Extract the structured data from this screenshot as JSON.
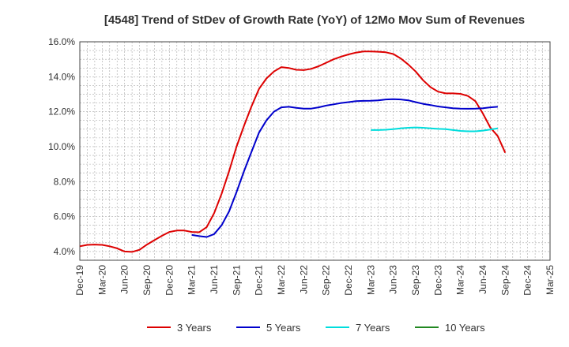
{
  "chart_data": {
    "type": "line",
    "title": "[4548]  Trend of StDev of Growth Rate (YoY) of 12Mo Mov Sum of Revenues",
    "xlabel": "",
    "ylabel": "",
    "ylim": [
      3.5,
      16.0
    ],
    "y_ticks": [
      "4.0%",
      "6.0%",
      "8.0%",
      "10.0%",
      "12.0%",
      "14.0%",
      "16.0%"
    ],
    "y_tick_values": [
      4,
      6,
      8,
      10,
      12,
      14,
      16
    ],
    "x_tick_labels": [
      "Dec-19",
      "Mar-20",
      "Jun-20",
      "Sep-20",
      "Dec-20",
      "Mar-21",
      "Jun-21",
      "Sep-21",
      "Dec-21",
      "Mar-22",
      "Jun-22",
      "Sep-22",
      "Dec-22",
      "Mar-23",
      "Jun-23",
      "Sep-23",
      "Dec-23",
      "Mar-24",
      "Jun-24",
      "Sep-24",
      "Dec-24",
      "Mar-25"
    ],
    "x_range_months": [
      0,
      63
    ],
    "grid": true,
    "legend_position": "bottom",
    "series": [
      {
        "name": "3 Years",
        "color": "#dd0000",
        "points": [
          [
            0,
            4.3
          ],
          [
            1,
            4.38
          ],
          [
            2,
            4.4
          ],
          [
            3,
            4.38
          ],
          [
            4,
            4.3
          ],
          [
            5,
            4.18
          ],
          [
            6,
            4.0
          ],
          [
            7,
            3.98
          ],
          [
            8,
            4.1
          ],
          [
            9,
            4.4
          ],
          [
            10,
            4.65
          ],
          [
            11,
            4.9
          ],
          [
            12,
            5.12
          ],
          [
            13,
            5.2
          ],
          [
            14,
            5.2
          ],
          [
            15,
            5.12
          ],
          [
            16,
            5.1
          ],
          [
            17,
            5.4
          ],
          [
            18,
            6.2
          ],
          [
            19,
            7.3
          ],
          [
            20,
            8.6
          ],
          [
            21,
            10.0
          ],
          [
            22,
            11.2
          ],
          [
            23,
            12.3
          ],
          [
            24,
            13.3
          ],
          [
            25,
            13.9
          ],
          [
            26,
            14.3
          ],
          [
            27,
            14.55
          ],
          [
            28,
            14.5
          ],
          [
            29,
            14.4
          ],
          [
            30,
            14.38
          ],
          [
            31,
            14.45
          ],
          [
            32,
            14.6
          ],
          [
            33,
            14.8
          ],
          [
            34,
            15.0
          ],
          [
            35,
            15.15
          ],
          [
            36,
            15.28
          ],
          [
            37,
            15.38
          ],
          [
            38,
            15.45
          ],
          [
            39,
            15.45
          ],
          [
            40,
            15.43
          ],
          [
            41,
            15.4
          ],
          [
            42,
            15.3
          ],
          [
            43,
            15.05
          ],
          [
            44,
            14.7
          ],
          [
            45,
            14.3
          ],
          [
            46,
            13.8
          ],
          [
            47,
            13.4
          ],
          [
            48,
            13.15
          ],
          [
            49,
            13.05
          ],
          [
            50,
            13.05
          ],
          [
            51,
            13.02
          ],
          [
            52,
            12.9
          ],
          [
            53,
            12.6
          ],
          [
            54,
            11.9
          ],
          [
            55,
            11.1
          ],
          [
            56,
            10.6
          ],
          [
            57,
            9.65
          ]
        ]
      },
      {
        "name": "5 Years",
        "color": "#0000cc",
        "points": [
          [
            15,
            4.95
          ],
          [
            16,
            4.88
          ],
          [
            17,
            4.83
          ],
          [
            18,
            5.0
          ],
          [
            19,
            5.5
          ],
          [
            20,
            6.3
          ],
          [
            21,
            7.4
          ],
          [
            22,
            8.6
          ],
          [
            23,
            9.7
          ],
          [
            24,
            10.8
          ],
          [
            25,
            11.5
          ],
          [
            26,
            12.0
          ],
          [
            27,
            12.25
          ],
          [
            28,
            12.28
          ],
          [
            29,
            12.22
          ],
          [
            30,
            12.18
          ],
          [
            31,
            12.18
          ],
          [
            32,
            12.25
          ],
          [
            33,
            12.35
          ],
          [
            34,
            12.42
          ],
          [
            35,
            12.5
          ],
          [
            36,
            12.55
          ],
          [
            37,
            12.6
          ],
          [
            38,
            12.62
          ],
          [
            39,
            12.63
          ],
          [
            40,
            12.65
          ],
          [
            41,
            12.7
          ],
          [
            42,
            12.72
          ],
          [
            43,
            12.7
          ],
          [
            44,
            12.65
          ],
          [
            45,
            12.55
          ],
          [
            46,
            12.45
          ],
          [
            47,
            12.38
          ],
          [
            48,
            12.3
          ],
          [
            49,
            12.25
          ],
          [
            50,
            12.2
          ],
          [
            51,
            12.18
          ],
          [
            52,
            12.17
          ],
          [
            53,
            12.18
          ],
          [
            54,
            12.2
          ],
          [
            55,
            12.25
          ],
          [
            56,
            12.28
          ]
        ]
      },
      {
        "name": "7 Years",
        "color": "#00dddd",
        "points": [
          [
            39,
            10.95
          ],
          [
            40,
            10.95
          ],
          [
            41,
            10.97
          ],
          [
            42,
            11.0
          ],
          [
            43,
            11.05
          ],
          [
            44,
            11.08
          ],
          [
            45,
            11.1
          ],
          [
            46,
            11.08
          ],
          [
            47,
            11.05
          ],
          [
            48,
            11.02
          ],
          [
            49,
            11.0
          ],
          [
            50,
            10.95
          ],
          [
            51,
            10.9
          ],
          [
            52,
            10.88
          ],
          [
            53,
            10.88
          ],
          [
            54,
            10.92
          ],
          [
            55,
            10.98
          ],
          [
            56,
            11.05
          ]
        ]
      },
      {
        "name": "10 Years",
        "color": "#228822",
        "points": []
      }
    ]
  }
}
